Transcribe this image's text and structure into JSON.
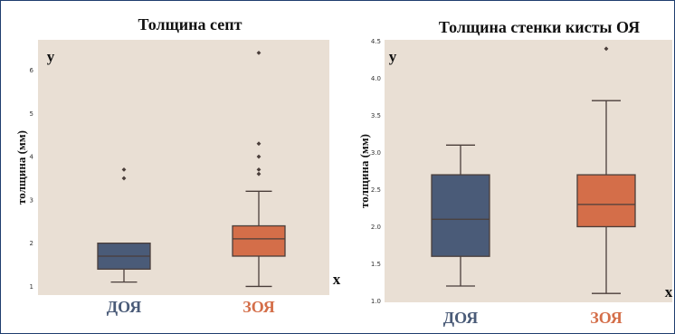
{
  "colors": {
    "plot_bg": "#e9dfd4",
    "dark_line": "#4a3e3a",
    "doya": "#4a5b78",
    "zoya": "#d46e49"
  },
  "chart_data": [
    {
      "type": "box",
      "title": "Толщина септ",
      "ylabel": "толщина (мм)",
      "y_axis_letter": "y",
      "x_axis_letter": "x",
      "ylim": [
        0.8,
        6.7
      ],
      "yticks": [
        "1",
        "2",
        "3",
        "4",
        "5",
        "6"
      ],
      "grid": false,
      "categories": [
        "ДОЯ",
        "ЗОЯ"
      ],
      "boxes": [
        {
          "whisker_low": 1.1,
          "q1": 1.4,
          "median": 1.7,
          "q3": 2.0,
          "whisker_high": 2.0,
          "outliers": [
            3.5,
            3.7
          ]
        },
        {
          "whisker_low": 1.0,
          "q1": 1.7,
          "median": 2.1,
          "q3": 2.4,
          "whisker_high": 3.2,
          "outliers": [
            3.6,
            3.7,
            4.0,
            4.3,
            6.4
          ]
        }
      ]
    },
    {
      "type": "box",
      "title": "Толщина стенки кисты ОЯ",
      "ylabel": "толщина (мм)",
      "y_axis_letter": "y",
      "x_axis_letter": "x",
      "ylim": [
        0.98,
        4.52
      ],
      "yticks": [
        "1.0",
        "1.5",
        "2.0",
        "2.5",
        "3.0",
        "3.5",
        "4.0",
        "4.5"
      ],
      "grid": false,
      "categories": [
        "ДОЯ",
        "ЗОЯ"
      ],
      "boxes": [
        {
          "whisker_low": 1.2,
          "q1": 1.6,
          "median": 2.1,
          "q3": 2.7,
          "whisker_high": 3.1,
          "outliers": []
        },
        {
          "whisker_low": 1.1,
          "q1": 2.0,
          "median": 2.3,
          "q3": 2.7,
          "whisker_high": 3.7,
          "outliers": [
            4.4
          ]
        }
      ]
    }
  ]
}
